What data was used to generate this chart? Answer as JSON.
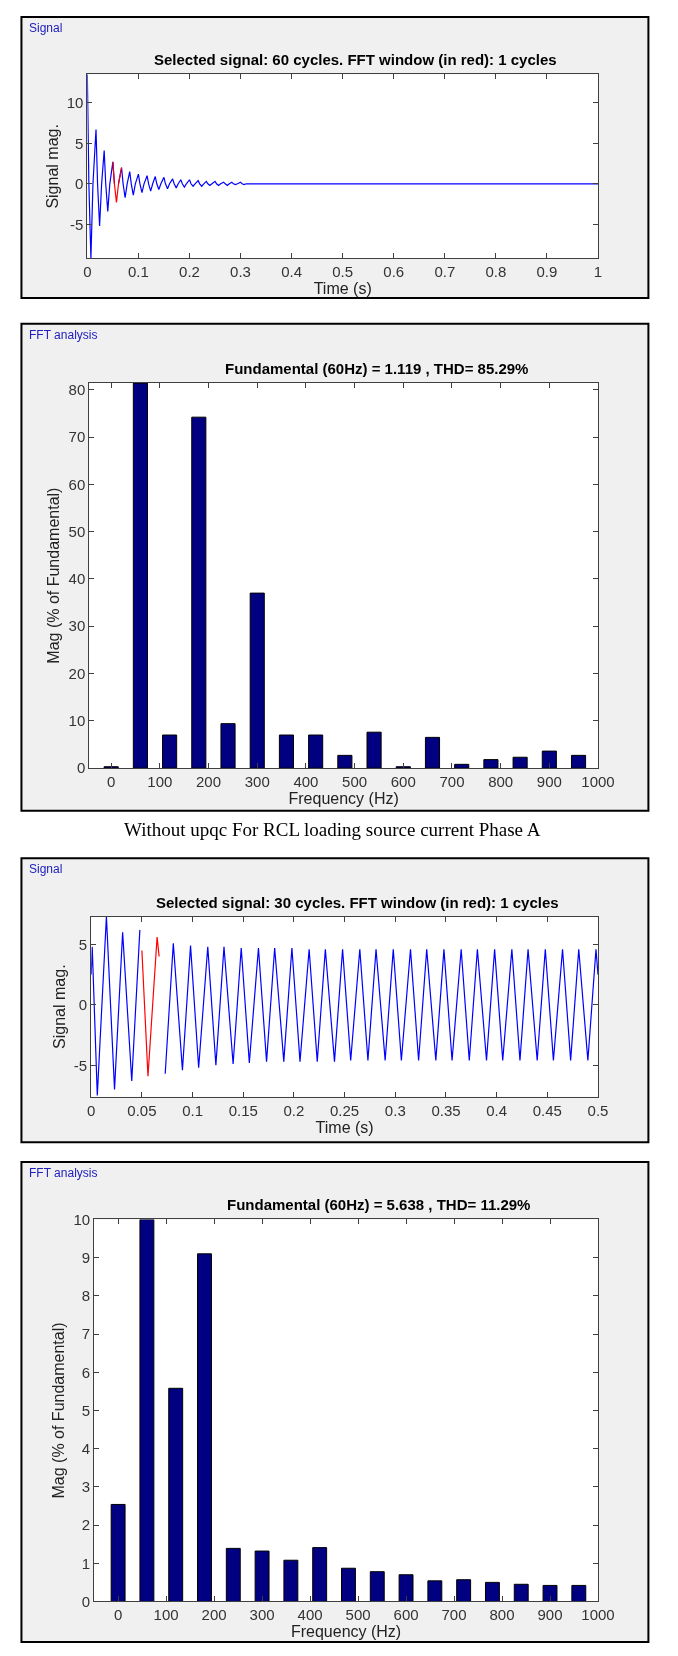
{
  "chart_data": [
    {
      "type": "line",
      "title": "Selected signal: 60 cycles. FFT window (in red): 1 cycles",
      "xlabel": "Time (s)",
      "ylabel": "Signal mag.",
      "annotations": [
        "Signal"
      ],
      "series": [
        {
          "color": "#0000ff",
          "x": [
            0,
            0.003,
            0.007,
            0.011,
            0.017,
            0.02,
            0.024,
            0.028,
            0.033,
            0.036,
            0.04,
            0.044,
            0.05,
            0.053,
            0.057,
            0.061,
            0.067,
            0.07,
            0.074,
            0.078,
            0.083,
            0.086,
            0.09,
            0.094,
            0.1,
            0.103,
            0.107,
            0.111,
            0.117,
            0.12,
            0.124,
            0.128,
            0.133,
            0.136,
            0.14,
            0.144,
            0.15,
            0.153,
            0.157,
            0.161,
            0.167,
            0.17,
            0.174,
            0.178,
            0.183,
            0.186,
            0.19,
            0.194,
            0.2,
            0.203,
            0.207,
            0.211,
            0.217,
            0.22,
            0.224,
            0.228,
            0.233,
            0.236,
            0.24,
            0.244,
            0.25,
            0.253,
            0.257,
            0.261,
            0.267,
            0.27,
            0.274,
            0.278,
            0.283,
            0.286,
            0.29,
            0.294,
            0.3,
            0.303,
            0.307,
            0.311,
            1
          ],
          "values": [
            13.5,
            0,
            -9.2,
            0,
            6.7,
            0,
            -5.2,
            0,
            4.1,
            0,
            -3.4,
            0,
            2.7,
            0,
            null,
            0,
            2.0,
            0,
            -1.7,
            0,
            1.5,
            0,
            -1.4,
            0,
            1.2,
            0,
            -1.1,
            0,
            1.0,
            0,
            -0.9,
            0,
            0.9,
            0,
            -0.7,
            0,
            0.8,
            0,
            -0.6,
            0,
            0.6,
            0,
            -0.5,
            0,
            0.5,
            0,
            -0.4,
            0,
            0.5,
            0,
            -0.3,
            0,
            0.4,
            0,
            -0.3,
            0,
            0.3,
            0,
            -0.2,
            0,
            0.3,
            0,
            -0.2,
            0,
            0.2,
            0,
            -0.2,
            0,
            0.2,
            0,
            -0.1,
            0,
            0.2,
            0,
            -0.1,
            0,
            0
          ]
        },
        {
          "color": "#ff0000",
          "x": [
            0.05,
            0.053,
            0.057,
            0.061,
            0.067
          ],
          "values": [
            2.7,
            0,
            -2.3,
            0,
            2.0
          ]
        }
      ],
      "xlim": [
        0,
        1
      ],
      "ylim": [
        -9.2,
        13.5
      ],
      "xticks": [
        0,
        0.1,
        0.2,
        0.3,
        0.4,
        0.5,
        0.6,
        0.7,
        0.8,
        0.9,
        1
      ],
      "yticks": [
        -5,
        0,
        5,
        10
      ]
    },
    {
      "type": "bar",
      "title": "Fundamental (60Hz) = 1.119 , THD= 85.29%",
      "xlabel": "Frequency (Hz)",
      "ylabel": "Mag (% of Fundamental)",
      "annotations": [
        "FFT analysis",
        "Without upqc For RCL loading source current Phase A"
      ],
      "x": [
        0,
        60,
        120,
        180,
        240,
        300,
        360,
        420,
        480,
        540,
        600,
        660,
        720,
        780,
        840,
        900,
        960
      ],
      "values": [
        0.3,
        81.4,
        7.0,
        74.2,
        9.4,
        37.0,
        7.0,
        7.0,
        2.7,
        7.6,
        0.3,
        6.5,
        0.8,
        1.8,
        2.3,
        3.6,
        2.7
      ],
      "color": "#000080",
      "xlim": [
        -45,
        1000
      ],
      "ylim": [
        0,
        81.4
      ],
      "xticks": [
        0,
        100,
        200,
        300,
        400,
        500,
        600,
        700,
        800,
        900,
        1000
      ],
      "yticks": [
        0,
        10,
        20,
        30,
        40,
        50,
        60,
        70,
        80
      ]
    },
    {
      "type": "line",
      "title": "Selected signal: 30 cycles. FFT window (in red): 1 cycles",
      "xlabel": "Time (s)",
      "ylabel": "Signal mag.",
      "annotations": [
        "Signal"
      ],
      "series": [
        {
          "color": "#0000ff",
          "x": [
            0,
            0.001,
            0.006,
            0.015,
            0.023,
            0.031,
            0.04,
            0.048,
            0.056,
            0.065,
            0.073,
            0.081,
            0.09,
            0.098,
            0.106,
            0.115,
            0.123,
            0.131,
            0.14,
            0.148,
            0.156,
            0.165,
            0.173,
            0.181,
            0.19,
            0.198,
            0.206,
            0.215,
            0.223,
            0.231,
            0.24,
            0.248,
            0.256,
            0.265,
            0.273,
            0.281,
            0.29,
            0.298,
            0.306,
            0.315,
            0.323,
            0.331,
            0.34,
            0.348,
            0.356,
            0.365,
            0.373,
            0.381,
            0.39,
            0.398,
            0.406,
            0.415,
            0.423,
            0.431,
            0.44,
            0.448,
            0.456,
            0.465,
            0.473,
            0.481,
            0.49,
            0.498,
            0.5
          ],
          "values": [
            2.5,
            4.8,
            -7.5,
            7.3,
            -7.0,
            6.0,
            -6.3,
            6.2,
            null,
            null,
            -5.7,
            5.1,
            -5.4,
            4.9,
            -5.2,
            4.8,
            -5.0,
            4.8,
            -4.9,
            4.7,
            -4.8,
            4.7,
            -4.7,
            4.7,
            -4.7,
            4.7,
            -4.7,
            4.6,
            -4.7,
            4.6,
            -4.7,
            4.6,
            -4.6,
            4.6,
            -4.6,
            4.6,
            -4.6,
            4.6,
            -4.6,
            4.6,
            -4.6,
            4.6,
            -4.6,
            4.6,
            -4.6,
            4.6,
            -4.6,
            4.6,
            -4.6,
            4.6,
            -4.6,
            4.6,
            -4.6,
            4.6,
            -4.6,
            4.6,
            -4.6,
            4.6,
            -4.6,
            4.6,
            -4.6,
            4.6,
            2.5
          ]
        },
        {
          "color": "#ff0000",
          "x": [
            0.05,
            0.056,
            0.065,
            0.067
          ],
          "values": [
            4.5,
            -5.9,
            5.6,
            4.0
          ]
        }
      ],
      "xlim": [
        0,
        0.5
      ],
      "ylim": [
        -7.6,
        7.3
      ],
      "xticks": [
        0,
        0.05,
        0.1,
        0.15,
        0.2,
        0.25,
        0.3,
        0.35,
        0.4,
        0.45,
        0.5
      ],
      "yticks": [
        -5,
        0,
        5
      ]
    },
    {
      "type": "bar",
      "title": "Fundamental (60Hz) = 5.638 , THD= 11.29%",
      "xlabel": "Frequency (Hz)",
      "ylabel": "Mag (% of Fundamental)",
      "annotations": [
        "FFT analysis"
      ],
      "x": [
        0,
        60,
        120,
        180,
        240,
        300,
        360,
        420,
        480,
        540,
        600,
        660,
        720,
        780,
        840,
        900,
        960
      ],
      "values": [
        2.54,
        10,
        5.58,
        9.1,
        1.39,
        1.32,
        1.08,
        1.41,
        0.87,
        0.78,
        0.7,
        0.54,
        0.57,
        0.5,
        0.45,
        0.42,
        0.42
      ],
      "color": "#000080",
      "xlim": [
        -50,
        1000
      ],
      "ylim": [
        0,
        10
      ],
      "xticks": [
        0,
        100,
        200,
        300,
        400,
        500,
        600,
        700,
        800,
        900,
        1000
      ],
      "yticks": [
        0,
        1,
        2,
        3,
        4,
        5,
        6,
        7,
        8,
        9,
        10
      ]
    }
  ]
}
